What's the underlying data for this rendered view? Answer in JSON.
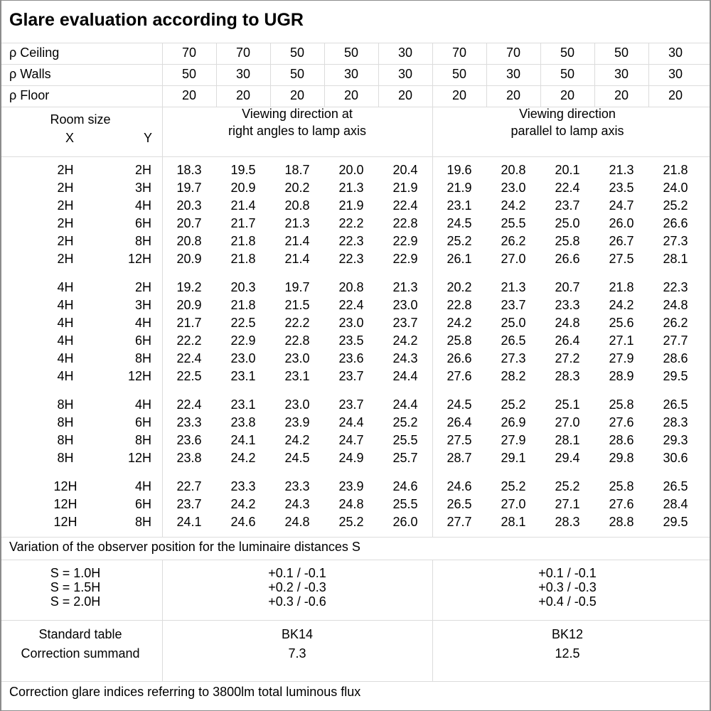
{
  "title": "Glare evaluation according to UGR",
  "reflectances": [
    {
      "label": "ρ Ceiling",
      "values": [
        "70",
        "70",
        "50",
        "50",
        "30",
        "70",
        "70",
        "50",
        "50",
        "30"
      ]
    },
    {
      "label": "ρ Walls",
      "values": [
        "50",
        "30",
        "50",
        "30",
        "30",
        "50",
        "30",
        "50",
        "30",
        "30"
      ]
    },
    {
      "label": "ρ Floor",
      "values": [
        "20",
        "20",
        "20",
        "20",
        "20",
        "20",
        "20",
        "20",
        "20",
        "20"
      ]
    }
  ],
  "header": {
    "room_size": "Room size",
    "x": "X",
    "y": "Y",
    "dir_right_1": "Viewing direction at",
    "dir_right_2": "right angles to lamp axis",
    "dir_parallel_1": "Viewing direction",
    "dir_parallel_2": "parallel to lamp axis"
  },
  "groups": [
    {
      "rows": [
        {
          "x": "2H",
          "y": "2H",
          "v": [
            "18.3",
            "19.5",
            "18.7",
            "20.0",
            "20.4",
            "19.6",
            "20.8",
            "20.1",
            "21.3",
            "21.8"
          ]
        },
        {
          "x": "2H",
          "y": "3H",
          "v": [
            "19.7",
            "20.9",
            "20.2",
            "21.3",
            "21.9",
            "21.9",
            "23.0",
            "22.4",
            "23.5",
            "24.0"
          ]
        },
        {
          "x": "2H",
          "y": "4H",
          "v": [
            "20.3",
            "21.4",
            "20.8",
            "21.9",
            "22.4",
            "23.1",
            "24.2",
            "23.7",
            "24.7",
            "25.2"
          ]
        },
        {
          "x": "2H",
          "y": "6H",
          "v": [
            "20.7",
            "21.7",
            "21.3",
            "22.2",
            "22.8",
            "24.5",
            "25.5",
            "25.0",
            "26.0",
            "26.6"
          ]
        },
        {
          "x": "2H",
          "y": "8H",
          "v": [
            "20.8",
            "21.8",
            "21.4",
            "22.3",
            "22.9",
            "25.2",
            "26.2",
            "25.8",
            "26.7",
            "27.3"
          ]
        },
        {
          "x": "2H",
          "y": "12H",
          "v": [
            "20.9",
            "21.8",
            "21.4",
            "22.3",
            "22.9",
            "26.1",
            "27.0",
            "26.6",
            "27.5",
            "28.1"
          ]
        }
      ]
    },
    {
      "rows": [
        {
          "x": "4H",
          "y": "2H",
          "v": [
            "19.2",
            "20.3",
            "19.7",
            "20.8",
            "21.3",
            "20.2",
            "21.3",
            "20.7",
            "21.8",
            "22.3"
          ]
        },
        {
          "x": "4H",
          "y": "3H",
          "v": [
            "20.9",
            "21.8",
            "21.5",
            "22.4",
            "23.0",
            "22.8",
            "23.7",
            "23.3",
            "24.2",
            "24.8"
          ]
        },
        {
          "x": "4H",
          "y": "4H",
          "v": [
            "21.7",
            "22.5",
            "22.2",
            "23.0",
            "23.7",
            "24.2",
            "25.0",
            "24.8",
            "25.6",
            "26.2"
          ]
        },
        {
          "x": "4H",
          "y": "6H",
          "v": [
            "22.2",
            "22.9",
            "22.8",
            "23.5",
            "24.2",
            "25.8",
            "26.5",
            "26.4",
            "27.1",
            "27.7"
          ]
        },
        {
          "x": "4H",
          "y": "8H",
          "v": [
            "22.4",
            "23.0",
            "23.0",
            "23.6",
            "24.3",
            "26.6",
            "27.3",
            "27.2",
            "27.9",
            "28.6"
          ]
        },
        {
          "x": "4H",
          "y": "12H",
          "v": [
            "22.5",
            "23.1",
            "23.1",
            "23.7",
            "24.4",
            "27.6",
            "28.2",
            "28.3",
            "28.9",
            "29.5"
          ]
        }
      ]
    },
    {
      "rows": [
        {
          "x": "8H",
          "y": "4H",
          "v": [
            "22.4",
            "23.1",
            "23.0",
            "23.7",
            "24.4",
            "24.5",
            "25.2",
            "25.1",
            "25.8",
            "26.5"
          ]
        },
        {
          "x": "8H",
          "y": "6H",
          "v": [
            "23.3",
            "23.8",
            "23.9",
            "24.4",
            "25.2",
            "26.4",
            "26.9",
            "27.0",
            "27.6",
            "28.3"
          ]
        },
        {
          "x": "8H",
          "y": "8H",
          "v": [
            "23.6",
            "24.1",
            "24.2",
            "24.7",
            "25.5",
            "27.5",
            "27.9",
            "28.1",
            "28.6",
            "29.3"
          ]
        },
        {
          "x": "8H",
          "y": "12H",
          "v": [
            "23.8",
            "24.2",
            "24.5",
            "24.9",
            "25.7",
            "28.7",
            "29.1",
            "29.4",
            "29.8",
            "30.6"
          ]
        }
      ]
    },
    {
      "rows": [
        {
          "x": "12H",
          "y": "4H",
          "v": [
            "22.7",
            "23.3",
            "23.3",
            "23.9",
            "24.6",
            "24.6",
            "25.2",
            "25.2",
            "25.8",
            "26.5"
          ]
        },
        {
          "x": "12H",
          "y": "6H",
          "v": [
            "23.7",
            "24.2",
            "24.3",
            "24.8",
            "25.5",
            "26.5",
            "27.0",
            "27.1",
            "27.6",
            "28.4"
          ]
        },
        {
          "x": "12H",
          "y": "8H",
          "v": [
            "24.1",
            "24.6",
            "24.8",
            "25.2",
            "26.0",
            "27.7",
            "28.1",
            "28.3",
            "28.8",
            "29.5"
          ]
        }
      ]
    }
  ],
  "variation": {
    "title": "Variation of the observer position for the luminaire distances S",
    "rows": [
      {
        "s": "S = 1.0H",
        "right": "+0.1 / -0.1",
        "parallel": "+0.1 / -0.1"
      },
      {
        "s": "S = 1.5H",
        "right": "+0.2 / -0.3",
        "parallel": "+0.3 / -0.3"
      },
      {
        "s": "S = 2.0H",
        "right": "+0.3 / -0.6",
        "parallel": "+0.4 / -0.5"
      }
    ]
  },
  "standard": {
    "label_table": "Standard table",
    "label_correction": "Correction summand",
    "right_table": "BK14",
    "right_correction": "7.3",
    "parallel_table": "BK12",
    "parallel_correction": "12.5"
  },
  "footer": "Correction glare indices referring to 3800lm total luminous flux"
}
